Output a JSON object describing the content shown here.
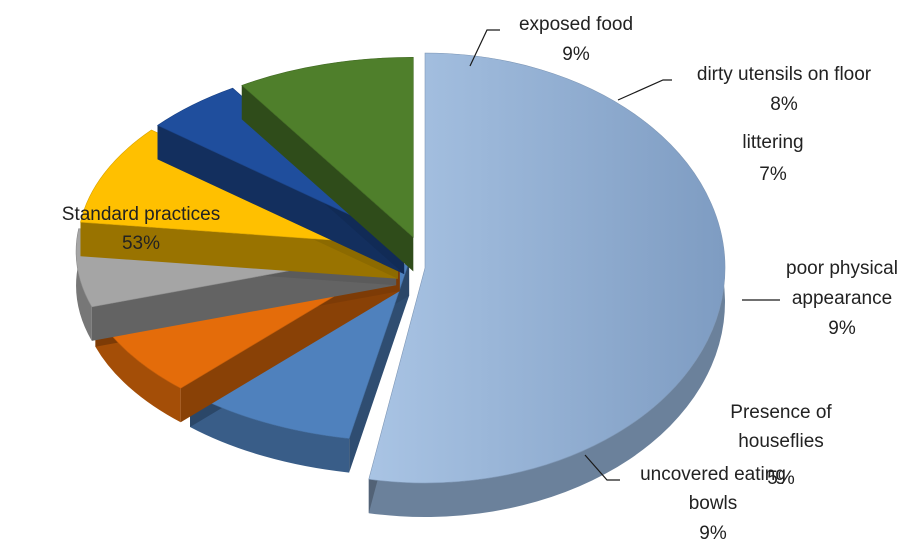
{
  "chart_data": {
    "type": "pie",
    "style": "3d-exploded",
    "title": "",
    "slices": [
      {
        "name": "Standard practices",
        "value": 53,
        "label": "53%",
        "color": "#95b3d7"
      },
      {
        "name": "exposed food",
        "value": 9,
        "label": "9%",
        "color": "#4f81bd"
      },
      {
        "name": "dirty utensils on floor",
        "value": 8,
        "label": "8%",
        "color": "#e46c0a"
      },
      {
        "name": "littering",
        "value": 7,
        "label": "7%",
        "color": "#a5a5a5"
      },
      {
        "name": "poor physical appearance",
        "value": 9,
        "label": "9%",
        "color": "#ffc000"
      },
      {
        "name": "Presence of houseflies",
        "value": 5,
        "label": "5%",
        "color": "#1f4e9d"
      },
      {
        "name": "uncovered eating bowls",
        "value": 9,
        "label": "9%",
        "color": "#4f7f2b"
      }
    ]
  },
  "labels": {
    "standard": {
      "line1": "Standard practices",
      "line2": "53%"
    },
    "exposed": {
      "line1": "exposed food",
      "line2": "9%"
    },
    "utensils": {
      "line1": "dirty utensils on floor",
      "line2": "8%"
    },
    "littering": {
      "line1": "littering",
      "line2": "7%"
    },
    "physical": {
      "line1": "poor physical",
      "line2": "appearance",
      "line3": "9%"
    },
    "houseflies": {
      "line1": "Presence of",
      "line2": "houseflies",
      "line3": "5%"
    },
    "bowls": {
      "line1": "uncovered eating",
      "line2": "bowls",
      "line3": "9%"
    }
  }
}
